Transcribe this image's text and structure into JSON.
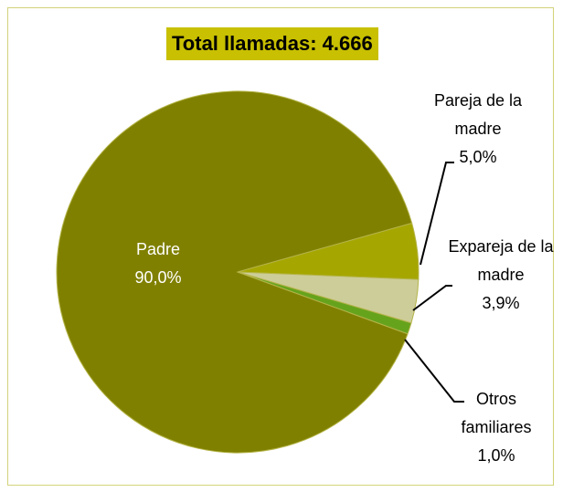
{
  "chart_data": {
    "type": "pie",
    "title": "Total llamadas: 4.666",
    "categories": [
      "Padre",
      "Pareja de la madre",
      "Expareja de la madre",
      "Otros familiares"
    ],
    "values": [
      90.0,
      5.0,
      3.9,
      1.0
    ],
    "value_labels": [
      "90,0%",
      "5,0%",
      "3,9%",
      "1,0%"
    ],
    "colors": [
      "#808000",
      "#a6a600",
      "#cdcd99",
      "#66a31c"
    ]
  }
}
